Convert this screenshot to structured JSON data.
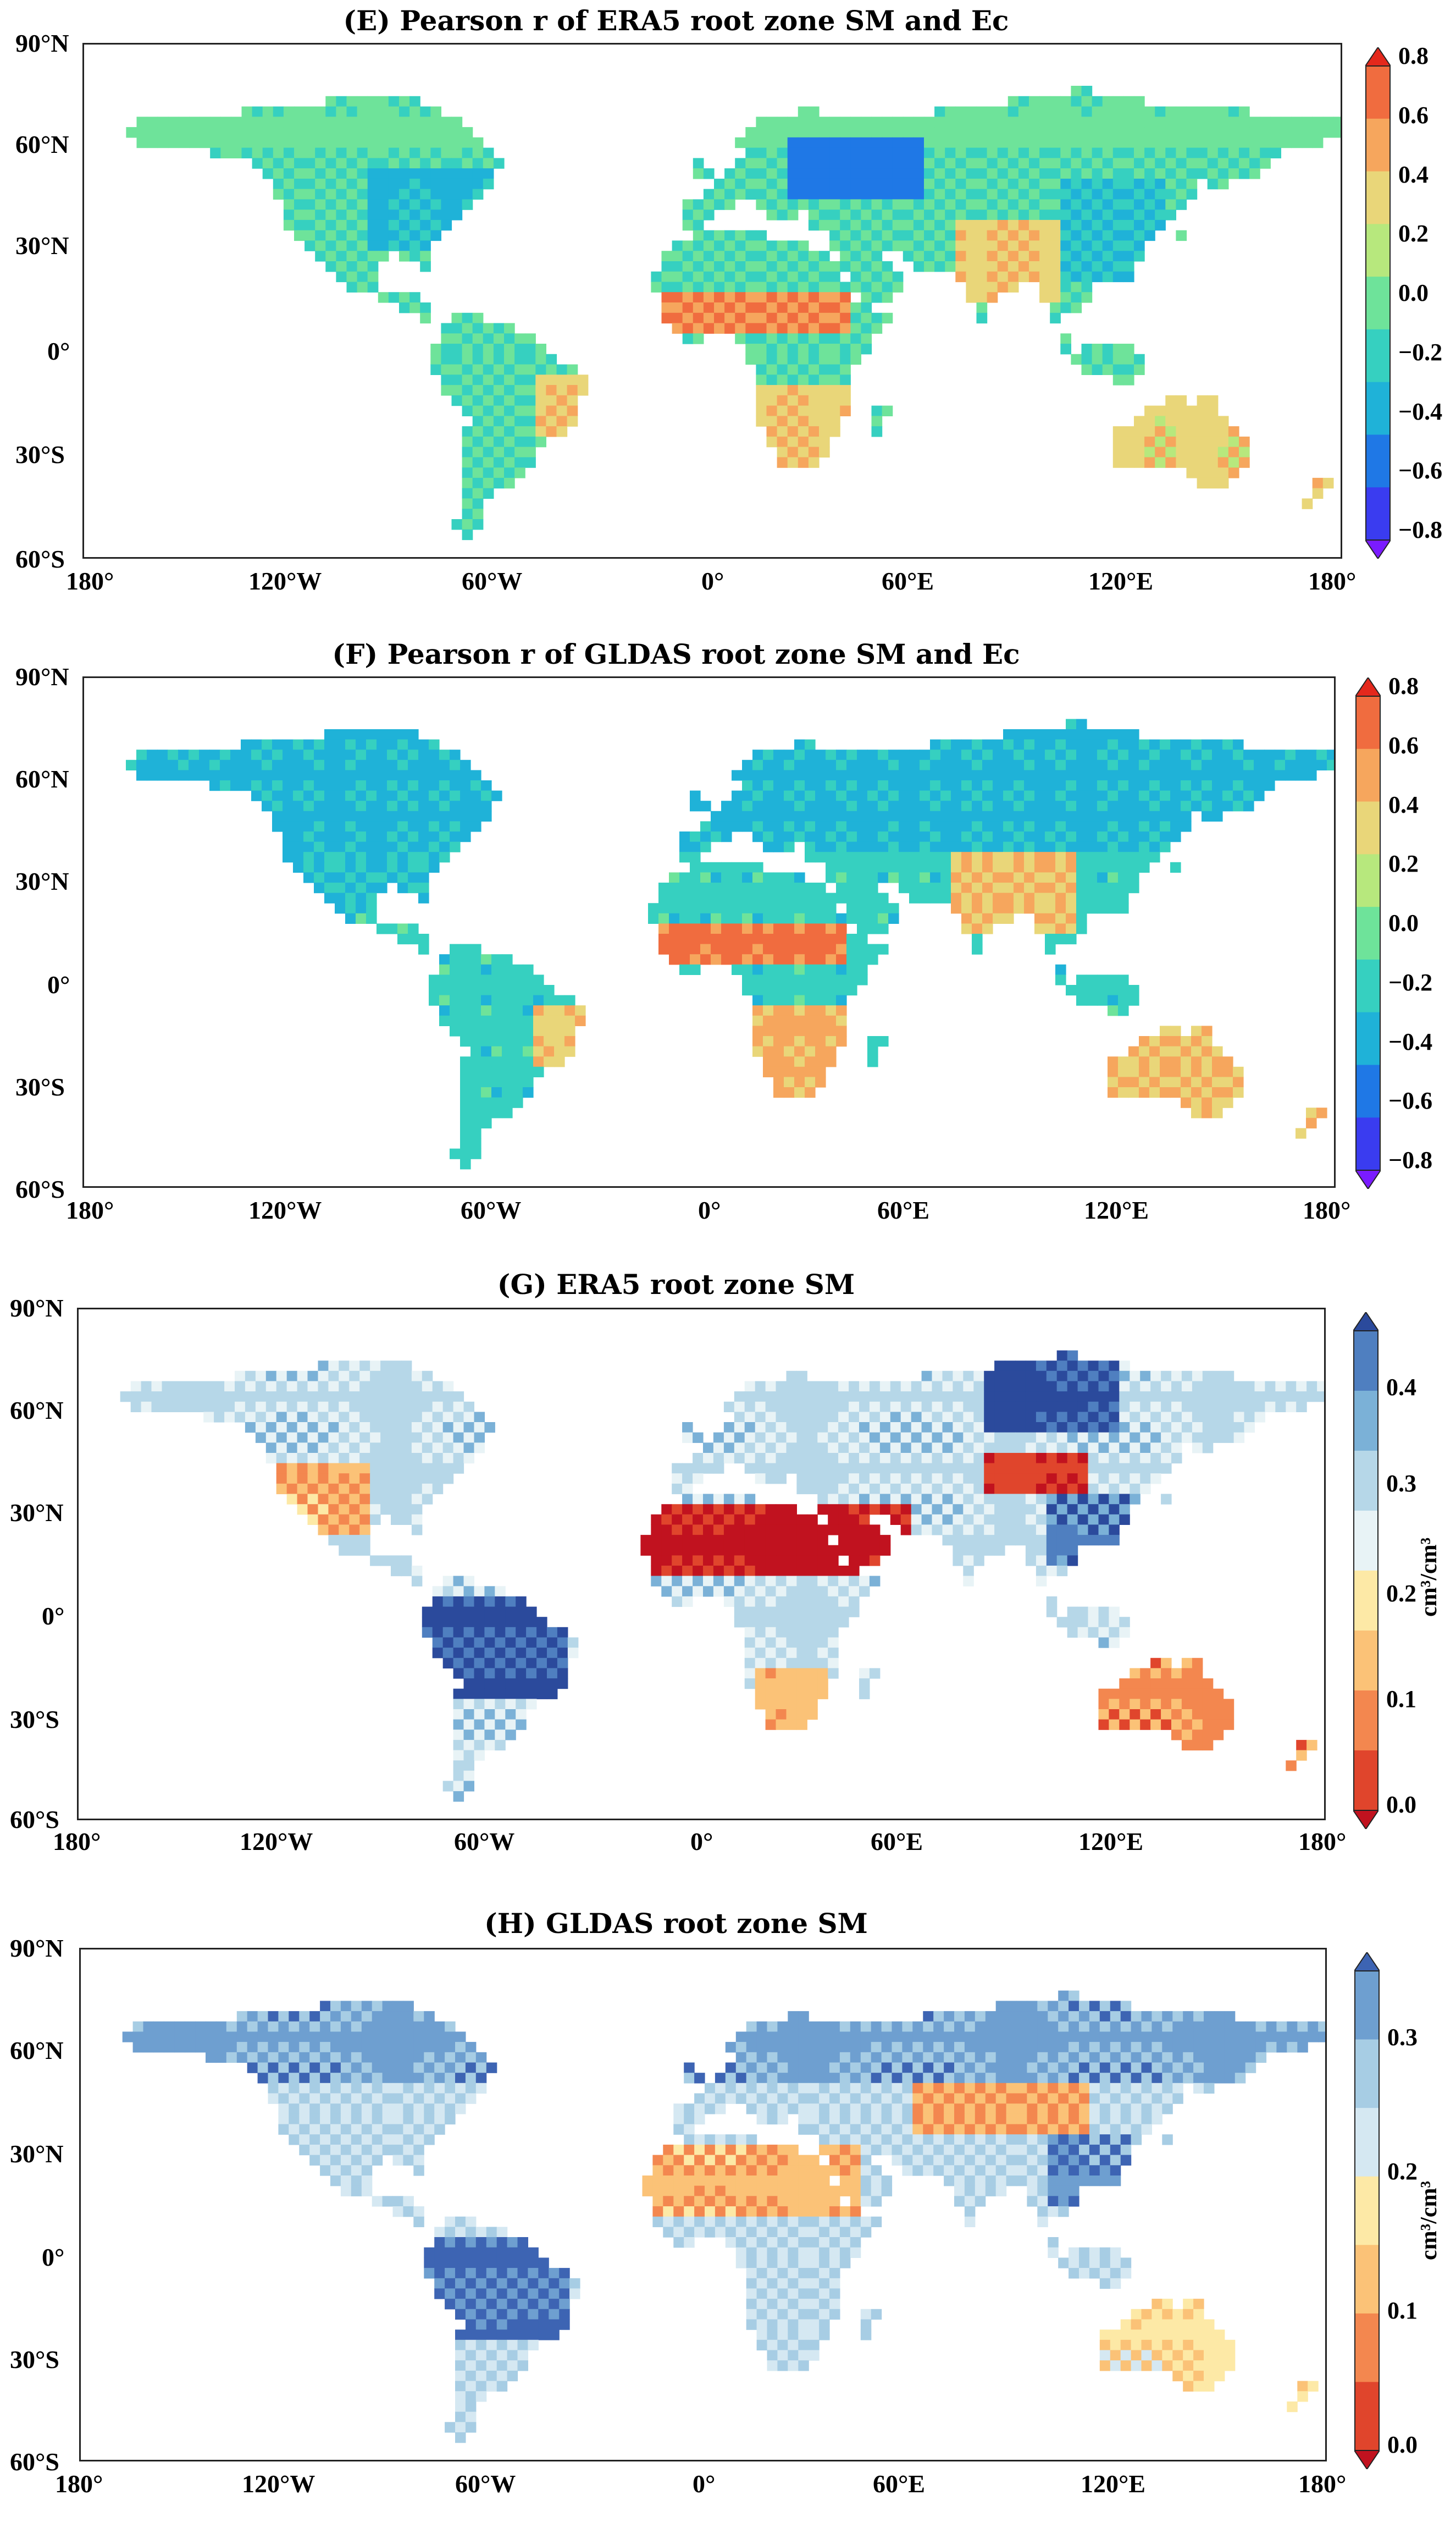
{
  "panels": [
    {
      "title": "(E) Pearson r of ERA5 root zone SM and Ec",
      "colorbar": {
        "type": "pearson",
        "ticks": [
          "0.8",
          "0.6",
          "0.4",
          "0.2",
          "0.0",
          "−0.2",
          "−0.4",
          "−0.6",
          "−0.8"
        ],
        "unit": ""
      }
    },
    {
      "title": "(F) Pearson r of GLDAS root zone SM and Ec",
      "colorbar": {
        "type": "pearson",
        "ticks": [
          "0.8",
          "0.6",
          "0.4",
          "0.2",
          "0.0",
          "−0.2",
          "−0.4",
          "−0.6",
          "−0.8"
        ],
        "unit": ""
      }
    },
    {
      "title": "(G) ERA5 root zone SM",
      "colorbar": {
        "type": "sm",
        "ticks": [
          "0.4",
          "0.3",
          "0.2",
          "0.1",
          "0.0"
        ],
        "unit": "cm³/cm³"
      }
    },
    {
      "title": "(H) GLDAS root zone SM",
      "colorbar": {
        "type": "sm",
        "ticks": [
          "0.3",
          "0.2",
          "0.1",
          "0.0"
        ],
        "unit": "cm³/cm³"
      }
    }
  ],
  "axes": {
    "lat_labels": [
      "90°N",
      "60°N",
      "30°N",
      "0°",
      "30°S",
      "60°S"
    ],
    "lon_labels": [
      "180°",
      "120°W",
      "60°W",
      "0°",
      "60°E",
      "120°E",
      "180°"
    ]
  },
  "colors": {
    "pearson": [
      "#7a1bff",
      "#3a3cf0",
      "#1f78e6",
      "#1fb2d8",
      "#36d0c0",
      "#6ee39a",
      "#b7e87d",
      "#e9d679",
      "#f6a65d",
      "#f06c3f",
      "#e4281c"
    ],
    "sm_era5": [
      "#c1121f",
      "#e0452c",
      "#f3874f",
      "#fbc277",
      "#fde9a6",
      "#e8f3f6",
      "#b6d7e8",
      "#7bb1d7",
      "#4f7fc0",
      "#2b4a9c"
    ],
    "sm_gldas": [
      "#c1121f",
      "#e0452c",
      "#f3874f",
      "#fbc277",
      "#fde9a6",
      "#d5e8f2",
      "#a7cde4",
      "#6e9fd0",
      "#3d64b3"
    ]
  }
}
